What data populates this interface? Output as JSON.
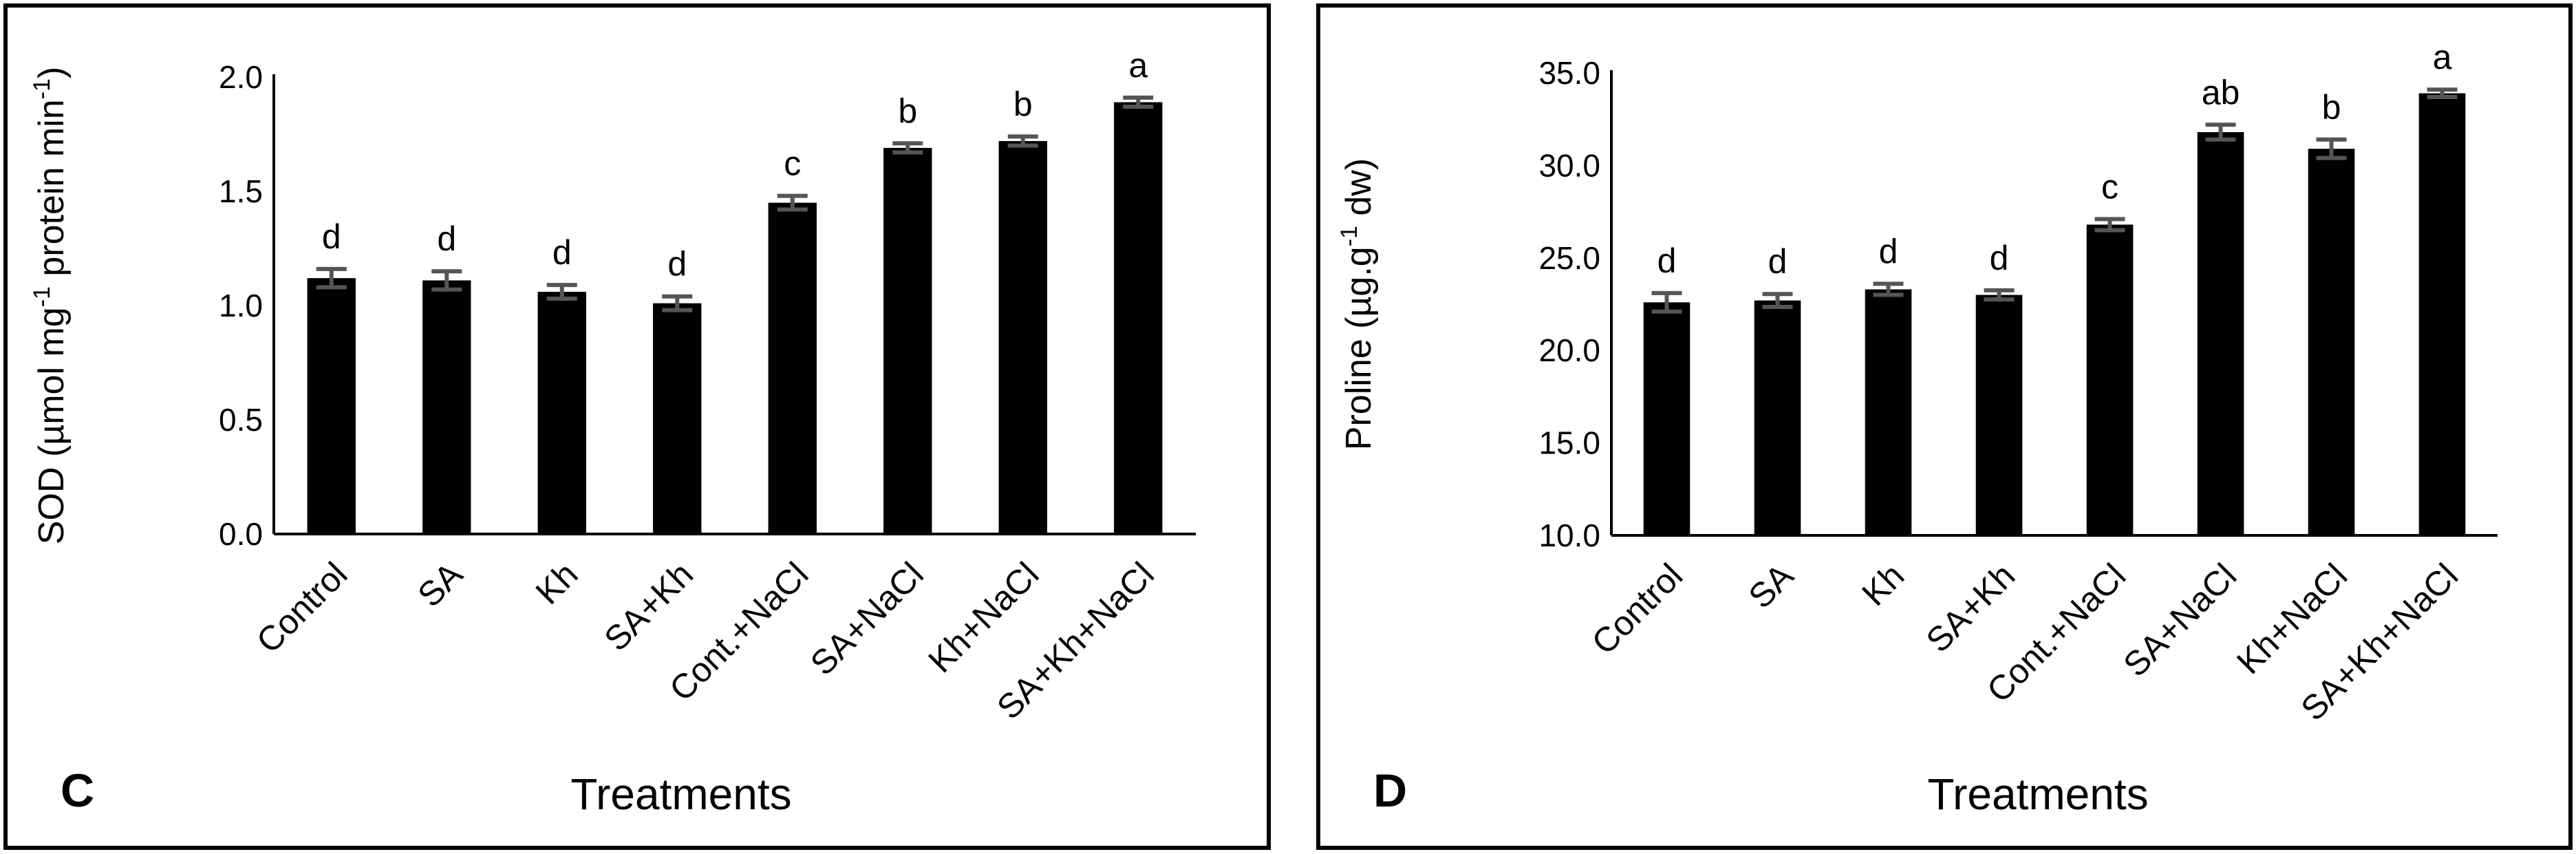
{
  "chart_data": [
    {
      "type": "bar",
      "panel_label": "C",
      "title": "",
      "xlabel": "Treatments",
      "ylabel": {
        "pre": "SOD  (µmol mg",
        "sup1": "-1",
        "mid": " protein min",
        "sup2": "-1",
        "post": ")"
      },
      "ylim": [
        0,
        2.0
      ],
      "yticks": [
        "0.0",
        "0.5",
        "1.0",
        "1.5",
        "2.0"
      ],
      "categories": [
        "Control",
        "SA",
        "Kh",
        "SA+Kh",
        "Cont.+NaCl",
        "SA+NaCl",
        "Kh+NaCl",
        "SA+Kh+NaCl"
      ],
      "values": [
        1.12,
        1.11,
        1.06,
        1.01,
        1.45,
        1.69,
        1.72,
        1.89
      ],
      "errors": [
        0.04,
        0.04,
        0.03,
        0.03,
        0.03,
        0.02,
        0.02,
        0.02
      ],
      "significance": [
        "d",
        "d",
        "d",
        "d",
        "c",
        "b",
        "b",
        "a"
      ],
      "grid": false,
      "legend": "none"
    },
    {
      "type": "bar",
      "panel_label": "D",
      "title": "",
      "xlabel": "Treatments",
      "ylabel": {
        "pre": "Proline (µg.g",
        "sup1": "-1",
        "mid": " dw)",
        "sup2": "",
        "post": ""
      },
      "ylim": [
        10,
        35
      ],
      "yticks": [
        "10.0",
        "15.0",
        "20.0",
        "25.0",
        "30.0",
        "35.0"
      ],
      "categories": [
        "Control",
        "SA",
        "Kh",
        "SA+Kh",
        "Cont.+NaCl",
        "SA+NaCl",
        "Kh+NaCl",
        "SA+Kh+NaCl"
      ],
      "values": [
        22.6,
        22.7,
        23.3,
        23.0,
        26.8,
        31.8,
        30.9,
        33.9
      ],
      "errors": [
        0.5,
        0.35,
        0.3,
        0.25,
        0.3,
        0.4,
        0.5,
        0.2
      ],
      "significance": [
        "d",
        "d",
        "d",
        "d",
        "c",
        "ab",
        "b",
        "a"
      ],
      "grid": false,
      "legend": "none"
    }
  ]
}
